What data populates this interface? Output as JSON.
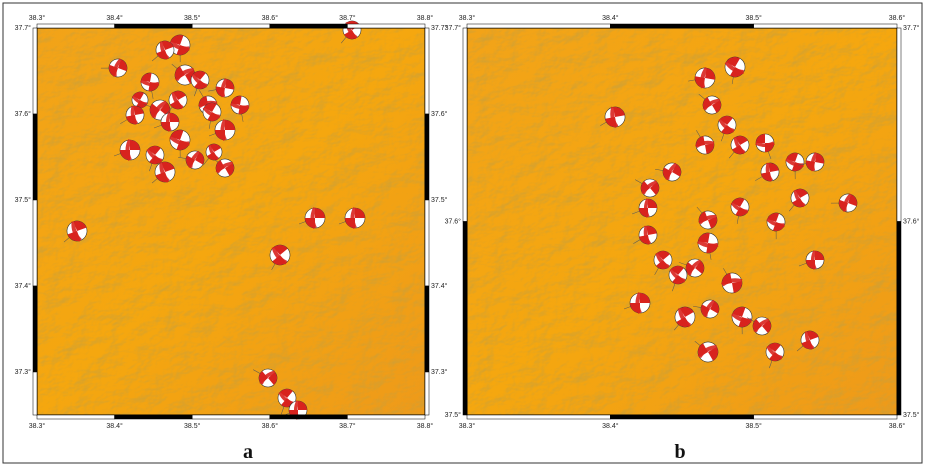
{
  "panels": [
    {
      "label": "a",
      "lon_ticks": [
        "38.3°",
        "38.4°",
        "38.5°",
        "38.6°",
        "38.7°",
        "38.8°"
      ],
      "lat_ticks": [
        "37.7°",
        "37.6°",
        "37.5°",
        "37.4°",
        "37.3°"
      ]
    },
    {
      "label": "b",
      "lon_ticks": [
        "38.3°",
        "38.4°",
        "38.5°",
        "38.6°"
      ],
      "lat_ticks": [
        "37.7°",
        "37.6°",
        "37.5°"
      ]
    }
  ]
}
